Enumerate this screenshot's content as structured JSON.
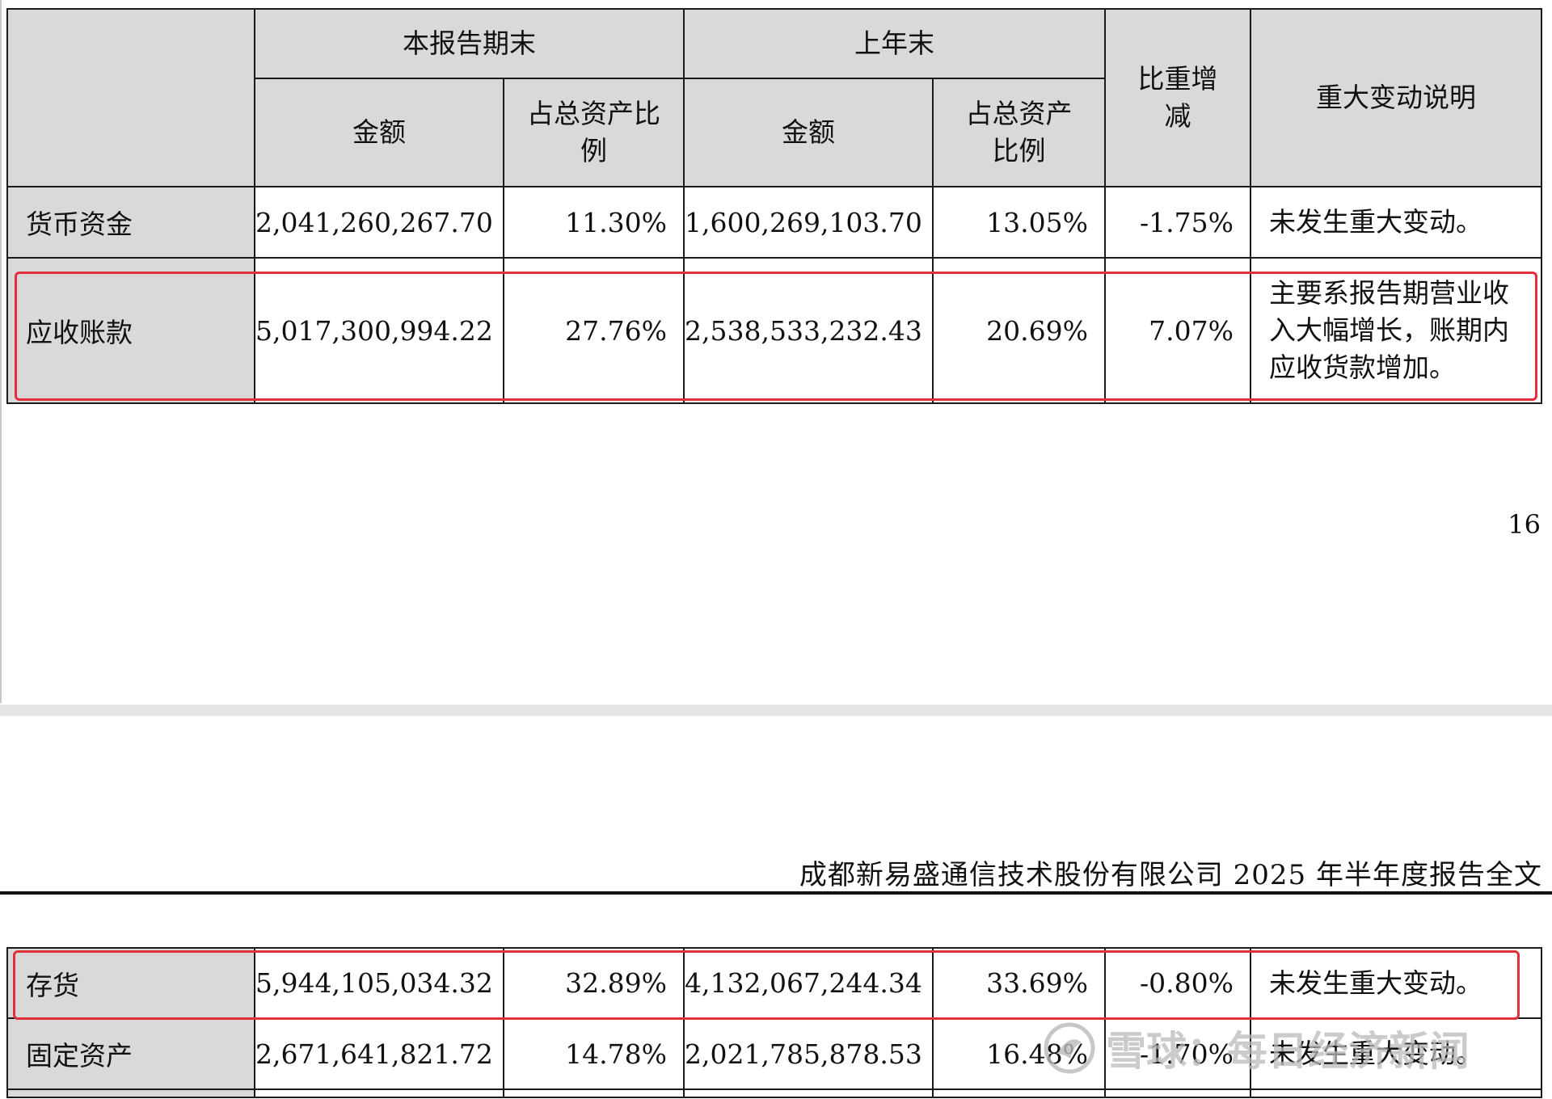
{
  "header": {
    "group_current": "本报告期末",
    "group_prior": "上年末",
    "change": "比重增减",
    "notes": "重大变动说明",
    "amount_current": "金额",
    "ratio_current": "占总资产比例",
    "amount_prior": "金额",
    "ratio_prior": "占总资产比例"
  },
  "rows_top": [
    {
      "item": "货币资金",
      "amount_current": "2,041,260,267.70",
      "ratio_current": "11.30%",
      "amount_prior": "1,600,269,103.70",
      "ratio_prior": "13.05%",
      "change": "-1.75%",
      "note": "未发生重大变动。"
    },
    {
      "item": "应收账款",
      "amount_current": "5,017,300,994.22",
      "ratio_current": "27.76%",
      "amount_prior": "2,538,533,232.43",
      "ratio_prior": "20.69%",
      "change": "7.07%",
      "note": "主要系报告期营业收入大幅增长，账期内应收货款增加。"
    }
  ],
  "page_number": "16",
  "company_title": "成都新易盛通信技术股份有限公司 2025 年半年度报告全文",
  "rows_bottom": [
    {
      "item": "存货",
      "amount_current": "5,944,105,034.32",
      "ratio_current": "32.89%",
      "amount_prior": "4,132,067,244.34",
      "ratio_prior": "33.69%",
      "change": "-0.80%",
      "note": "未发生重大变动。"
    },
    {
      "item": "固定资产",
      "amount_current": "2,671,641,821.72",
      "ratio_current": "14.78%",
      "amount_prior": "2,021,785,878.53",
      "ratio_prior": "16.48%",
      "change": "-1.70%",
      "note": "未发生重大变动。"
    }
  ],
  "watermark": {
    "text": "雪球：每日经济新闻",
    "icon": "snowball-logo-icon"
  },
  "colors": {
    "header_bg": "#d9d9d9",
    "highlight": "#e0303a",
    "border": "#1a1a1a"
  }
}
